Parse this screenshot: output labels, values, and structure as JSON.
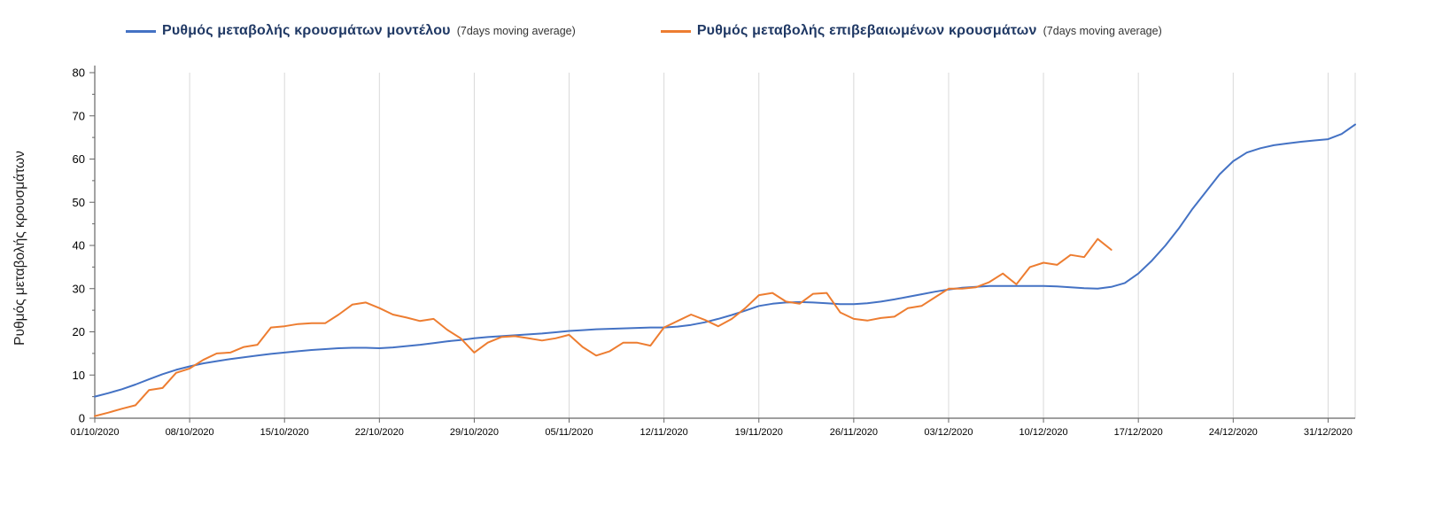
{
  "chart_data": {
    "type": "line",
    "title": "",
    "xlabel": "",
    "ylabel": "Ρυθμός μεταβολής κρουσμάτων",
    "ylim": [
      0,
      80
    ],
    "y_ticks": [
      0,
      10,
      20,
      30,
      40,
      50,
      60,
      70,
      80
    ],
    "x_start_date": "01/10/2020",
    "x_tick_interval_days": 7,
    "x_total_days": 93,
    "x_tick_labels": [
      "01/10/2020",
      "08/10/2020",
      "15/10/2020",
      "22/10/2020",
      "29/10/2020",
      "05/11/2020",
      "12/11/2020",
      "19/11/2020",
      "26/11/2020",
      "03/12/2020",
      "10/12/2020",
      "17/12/2020",
      "24/12/2020",
      "31/12/2020"
    ],
    "grid": "vertical-only",
    "legend_position": "top",
    "colors": {
      "grid": "#D9D9D9",
      "axis": "#666666",
      "tick_text": "#000000",
      "legend_text": "#1F3864"
    },
    "series": [
      {
        "name": "Ρυθμός μεταβολής κρουσμάτων μοντέλου",
        "sublabel": "(7days moving average)",
        "color": "#4472C4",
        "x_unit": "days since 01/10/2020",
        "values": [
          5.0,
          5.8,
          6.7,
          7.8,
          9.0,
          10.2,
          11.2,
          12.0,
          12.7,
          13.2,
          13.7,
          14.1,
          14.5,
          14.9,
          15.2,
          15.5,
          15.8,
          16.0,
          16.2,
          16.3,
          16.3,
          16.2,
          16.4,
          16.7,
          17.0,
          17.4,
          17.8,
          18.1,
          18.5,
          18.8,
          19.0,
          19.2,
          19.4,
          19.6,
          19.9,
          20.2,
          20.4,
          20.6,
          20.7,
          20.8,
          20.9,
          21.0,
          21.0,
          21.2,
          21.6,
          22.2,
          23.0,
          23.9,
          24.9,
          26.0,
          26.5,
          26.8,
          26.9,
          26.8,
          26.6,
          26.4,
          26.4,
          26.6,
          27.0,
          27.5,
          28.1,
          28.7,
          29.3,
          29.8,
          30.2,
          30.4,
          30.6,
          30.6,
          30.6,
          30.6,
          30.6,
          30.5,
          30.3,
          30.1,
          30.0,
          30.4,
          31.3,
          33.5,
          36.5,
          40.0,
          44.0,
          48.5,
          52.5,
          56.5,
          59.5,
          61.5,
          62.5,
          63.2,
          63.6,
          64.0,
          64.3,
          64.6,
          65.8,
          68.0
        ]
      },
      {
        "name": "Ρυθμός μεταβολής επιβεβαιωμένων κρουσμάτων",
        "sublabel": "(7days moving average)",
        "color": "#ED7D31",
        "x_unit": "days since 01/10/2020",
        "values": [
          0.5,
          1.3,
          2.2,
          3.0,
          6.5,
          7.0,
          10.5,
          11.5,
          13.5,
          15.0,
          15.2,
          16.5,
          17.0,
          21.0,
          21.3,
          21.8,
          22.0,
          22.0,
          24.0,
          26.3,
          26.8,
          25.5,
          24.0,
          23.3,
          22.5,
          23.0,
          20.5,
          18.5,
          15.2,
          17.5,
          18.8,
          19.0,
          18.5,
          18.0,
          18.5,
          19.3,
          16.5,
          14.5,
          15.5,
          17.5,
          17.5,
          16.8,
          21.0,
          22.5,
          24.0,
          22.8,
          21.3,
          23.0,
          25.5,
          28.5,
          29.0,
          27.0,
          26.5,
          28.8,
          29.0,
          24.5,
          23.0,
          22.6,
          23.2,
          23.5,
          25.5,
          26.0,
          28.0,
          30.0,
          30.0,
          30.3,
          31.5,
          33.5,
          31.0,
          35.0,
          36.0,
          35.5,
          37.8,
          37.3,
          41.5,
          39.0
        ]
      }
    ]
  }
}
